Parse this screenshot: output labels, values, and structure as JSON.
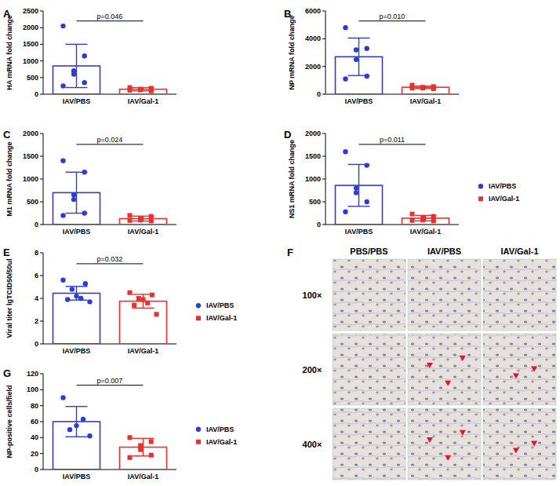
{
  "chart_data": [
    {
      "type": "bar",
      "title": "A",
      "y_label": "HA mRNA fold change",
      "categories": [
        "IAV/PBS",
        "IAV/Gal-1"
      ],
      "series": [
        {
          "name": "IAV/PBS",
          "color": "#2e3bd6",
          "marker": "circle",
          "values": [
            850,
            null
          ],
          "error": [
            650,
            null
          ],
          "points": [
            [
              2050,
              1150,
              700,
              600,
              350,
              250
            ],
            null
          ]
        },
        {
          "name": "IAV/Gal-1",
          "color": "#e8312f",
          "marker": "square",
          "values": [
            null,
            150
          ],
          "error": [
            null,
            50
          ],
          "points": [
            null,
            [
              200,
              180,
              150,
              130,
              100,
              120
            ]
          ]
        }
      ],
      "ylim": [
        0,
        2500
      ],
      "yticks": [
        0,
        500,
        1000,
        1500,
        2000,
        2500
      ],
      "grid": false,
      "annotations": [
        "p=0.046"
      ]
    },
    {
      "type": "bar",
      "title": "B",
      "y_label": "NP mRNA fold change",
      "categories": [
        "IAV/PBS",
        "IAV/Gal-1"
      ],
      "series": [
        {
          "name": "IAV/PBS",
          "color": "#2e3bd6",
          "marker": "circle",
          "values": [
            2700,
            null
          ],
          "error": [
            1350,
            null
          ],
          "points": [
            [
              4800,
              3300,
              3200,
              2500,
              1300,
              1100
            ],
            null
          ]
        },
        {
          "name": "IAV/Gal-1",
          "color": "#e8312f",
          "marker": "square",
          "values": [
            null,
            500
          ],
          "error": [
            null,
            90
          ],
          "points": [
            null,
            [
              650,
              550,
              500,
              450,
              400,
              450
            ]
          ]
        }
      ],
      "ylim": [
        0,
        6000
      ],
      "yticks": [
        0,
        2000,
        4000,
        6000
      ],
      "grid": false,
      "annotations": [
        "p=0.010"
      ]
    },
    {
      "type": "bar",
      "title": "C",
      "y_label": "M1 mRNA fold change",
      "categories": [
        "IAV/PBS",
        "IAV/Gal-1"
      ],
      "series": [
        {
          "name": "IAV/PBS",
          "color": "#2e3bd6",
          "marker": "circle",
          "values": [
            700,
            null
          ],
          "error": [
            450,
            null
          ],
          "points": [
            [
              1400,
              1150,
              650,
              550,
              250,
              200
            ],
            null
          ]
        },
        {
          "name": "IAV/Gal-1",
          "color": "#e8312f",
          "marker": "square",
          "values": [
            null,
            130
          ],
          "error": [
            null,
            55
          ],
          "points": [
            null,
            [
              200,
              180,
              130,
              100,
              80,
              90
            ]
          ]
        }
      ],
      "ylim": [
        0,
        2000
      ],
      "yticks": [
        0,
        500,
        1000,
        1500,
        2000
      ],
      "grid": false,
      "annotations": [
        "p=0.024"
      ]
    },
    {
      "type": "bar",
      "title": "D",
      "y_label": "NS1 mRNA fold change",
      "categories": [
        "IAV/PBS",
        "IAV/Gal-1"
      ],
      "series": [
        {
          "name": "IAV/PBS",
          "color": "#2e3bd6",
          "marker": "circle",
          "values": [
            860,
            null
          ],
          "error": [
            460,
            null
          ],
          "points": [
            [
              1600,
              1300,
              800,
              700,
              500,
              280
            ],
            null
          ]
        },
        {
          "name": "IAV/Gal-1",
          "color": "#e8312f",
          "marker": "square",
          "values": [
            null,
            140
          ],
          "error": [
            null,
            60
          ],
          "points": [
            null,
            [
              230,
              180,
              150,
              100,
              80,
              90
            ]
          ]
        }
      ],
      "ylim": [
        0,
        2000
      ],
      "yticks": [
        0,
        500,
        1000,
        1500,
        2000
      ],
      "grid": false,
      "annotations": [
        "p=0.011"
      ],
      "legend": "right"
    },
    {
      "type": "bar",
      "title": "E",
      "y_label": "Viral titer lgTCID50/50ul",
      "categories": [
        "IAV/PBS",
        "IAV/Gal-1"
      ],
      "series": [
        {
          "name": "IAV/PBS",
          "color": "#2e3bd6",
          "marker": "circle",
          "values": [
            4.45,
            null
          ],
          "error": [
            0.6,
            null
          ],
          "points": [
            [
              5.6,
              5.3,
              4.8,
              4.2,
              4.0,
              3.9,
              3.7
            ],
            null
          ]
        },
        {
          "name": "IAV/Gal-1",
          "color": "#e8312f",
          "marker": "square",
          "values": [
            null,
            3.75
          ],
          "error": [
            null,
            0.6
          ],
          "points": [
            null,
            [
              4.5,
              4.3,
              4.0,
              3.9,
              3.6,
              3.4,
              2.6
            ]
          ]
        }
      ],
      "ylim": [
        0,
        8
      ],
      "yticks": [
        0,
        2,
        4,
        6,
        8
      ],
      "grid": false,
      "annotations": [
        "p=0.032"
      ],
      "legend": "right"
    },
    {
      "type": "bar",
      "title": "G",
      "y_label": "NP-positive cells/field",
      "categories": [
        "IAV/PBS",
        "IAV/Gal-1"
      ],
      "series": [
        {
          "name": "IAV/PBS",
          "color": "#2e3bd6",
          "marker": "circle",
          "values": [
            60,
            null
          ],
          "error": [
            19,
            null
          ],
          "points": [
            [
              90,
              63,
              55,
              50,
              42
            ],
            null
          ]
        },
        {
          "name": "IAV/Gal-1",
          "color": "#e8312f",
          "marker": "square",
          "values": [
            null,
            28
          ],
          "error": [
            null,
            11
          ],
          "points": [
            null,
            [
              40,
              35,
              30,
              25,
              18,
              15
            ]
          ]
        }
      ],
      "ylim": [
        0,
        120
      ],
      "yticks": [
        0,
        20,
        40,
        60,
        80,
        100,
        120
      ],
      "grid": false,
      "annotations": [
        "p=0.007"
      ],
      "legend": "right"
    }
  ],
  "image_panel": {
    "title": "F",
    "columns": [
      "PBS/PBS",
      "IAV/PBS",
      "IAV/Gal-1"
    ],
    "rows": [
      "100×",
      "200×",
      "400×"
    ]
  }
}
